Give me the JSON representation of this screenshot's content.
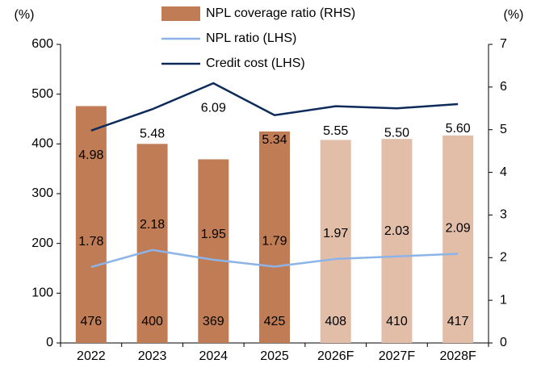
{
  "chart_data": {
    "type": "bar",
    "categories": [
      "2022",
      "2023",
      "2024",
      "2025",
      "2026F",
      "2027F",
      "2028F"
    ],
    "series": [
      {
        "name": "NPL coverage ratio (RHS)",
        "type": "bar",
        "color": "#c07d55",
        "colors": [
          "#c07d55",
          "#c07d55",
          "#c07d55",
          "#c07d55",
          "#e2bea9",
          "#e2bea9",
          "#e2bea9"
        ],
        "values": [
          476,
          400,
          369,
          425,
          408,
          410,
          417
        ]
      },
      {
        "name": "NPL ratio (LHS)",
        "type": "line",
        "axis": "y2",
        "color": "#8db4e8",
        "values": [
          1.78,
          2.18,
          1.95,
          1.79,
          1.97,
          2.03,
          2.09
        ]
      },
      {
        "name": "Credit cost (LHS)",
        "type": "line",
        "axis": "y2",
        "color": "#0d2a5a",
        "values": [
          4.98,
          5.48,
          6.09,
          5.34,
          5.55,
          5.5,
          5.6
        ],
        "value_labels": [
          "4.98",
          "5.48",
          "6.09",
          "5.34",
          "5.55",
          "5.50",
          "5.60"
        ]
      }
    ],
    "ylim": [
      0,
      600
    ],
    "yticks": [
      0,
      100,
      200,
      300,
      400,
      500,
      600
    ],
    "y2lim": [
      0,
      7
    ],
    "y2ticks": [
      0,
      1,
      2,
      3,
      4,
      5,
      6,
      7
    ],
    "y_label": "(%)",
    "y2_label": "(%)"
  }
}
